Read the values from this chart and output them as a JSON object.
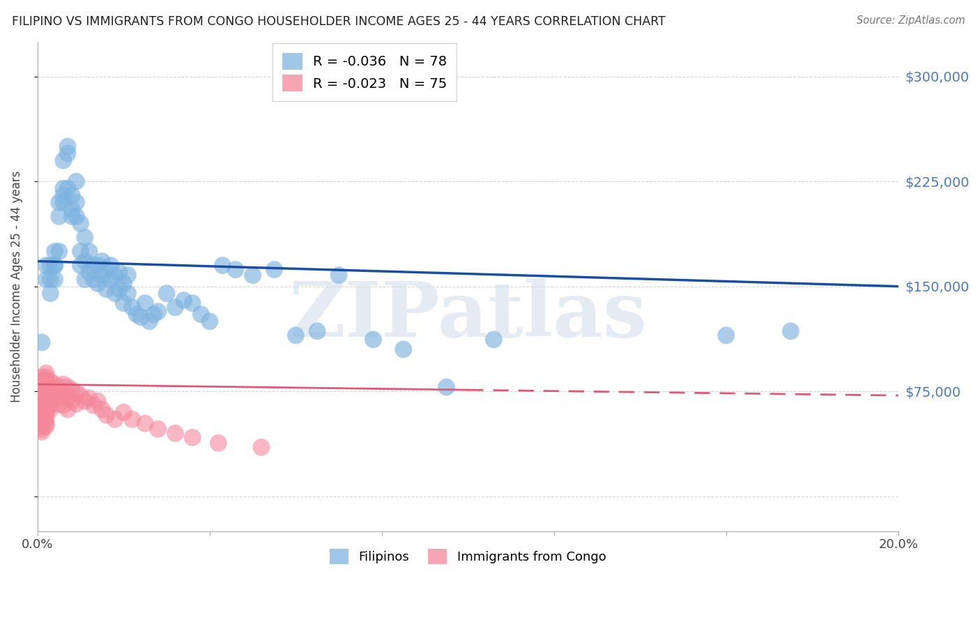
{
  "title": "FILIPINO VS IMMIGRANTS FROM CONGO HOUSEHOLDER INCOME AGES 25 - 44 YEARS CORRELATION CHART",
  "source": "Source: ZipAtlas.com",
  "ylabel": "Householder Income Ages 25 - 44 years",
  "xmin": 0.0,
  "xmax": 0.2,
  "ymin": -25000,
  "ymax": 325000,
  "yticks": [
    0,
    75000,
    150000,
    225000,
    300000
  ],
  "xticks": [
    0.0,
    0.04,
    0.08,
    0.12,
    0.16,
    0.2
  ],
  "filipino_color": "#7eb3e0",
  "congo_color": "#f4879a",
  "filipino_line_color": "#1a4fa0",
  "congo_line_color": "#e05878",
  "watermark": "ZIPatlas",
  "watermark_color": "#d0dce8",
  "background_color": "#ffffff",
  "grid_color": "#cccccc",
  "right_label_color": "#4a7abf",
  "legend_label_1": "R = -0.036   N = 78",
  "legend_label_2": "R = -0.023   N = 75",
  "bottom_label_filipinos": "Filipinos",
  "bottom_label_congo": "Immigrants from Congo",
  "filipinos_x": [
    0.001,
    0.002,
    0.002,
    0.003,
    0.003,
    0.003,
    0.004,
    0.004,
    0.004,
    0.004,
    0.005,
    0.005,
    0.005,
    0.006,
    0.006,
    0.006,
    0.006,
    0.007,
    0.007,
    0.007,
    0.008,
    0.008,
    0.008,
    0.009,
    0.009,
    0.009,
    0.01,
    0.01,
    0.01,
    0.011,
    0.011,
    0.011,
    0.012,
    0.012,
    0.013,
    0.013,
    0.014,
    0.014,
    0.015,
    0.015,
    0.016,
    0.016,
    0.017,
    0.017,
    0.018,
    0.018,
    0.019,
    0.019,
    0.02,
    0.02,
    0.021,
    0.021,
    0.022,
    0.023,
    0.024,
    0.025,
    0.026,
    0.027,
    0.028,
    0.03,
    0.032,
    0.034,
    0.036,
    0.038,
    0.04,
    0.043,
    0.046,
    0.05,
    0.055,
    0.06,
    0.065,
    0.07,
    0.078,
    0.085,
    0.095,
    0.106,
    0.16,
    0.175
  ],
  "filipinos_y": [
    110000,
    155000,
    165000,
    145000,
    165000,
    155000,
    165000,
    155000,
    175000,
    165000,
    175000,
    200000,
    210000,
    210000,
    215000,
    220000,
    240000,
    245000,
    220000,
    250000,
    200000,
    215000,
    205000,
    210000,
    225000,
    200000,
    165000,
    175000,
    195000,
    185000,
    155000,
    168000,
    160000,
    175000,
    155000,
    165000,
    152000,
    165000,
    158000,
    168000,
    148000,
    162000,
    155000,
    165000,
    145000,
    158000,
    148000,
    160000,
    138000,
    152000,
    145000,
    158000,
    135000,
    130000,
    128000,
    138000,
    125000,
    130000,
    132000,
    145000,
    135000,
    140000,
    138000,
    130000,
    125000,
    165000,
    162000,
    158000,
    162000,
    115000,
    118000,
    158000,
    112000,
    105000,
    78000,
    112000,
    115000,
    118000
  ],
  "congo_x": [
    0.001,
    0.001,
    0.001,
    0.001,
    0.001,
    0.001,
    0.001,
    0.001,
    0.001,
    0.001,
    0.001,
    0.001,
    0.001,
    0.001,
    0.001,
    0.001,
    0.001,
    0.001,
    0.001,
    0.001,
    0.002,
    0.002,
    0.002,
    0.002,
    0.002,
    0.002,
    0.002,
    0.002,
    0.002,
    0.002,
    0.002,
    0.002,
    0.002,
    0.002,
    0.002,
    0.002,
    0.003,
    0.003,
    0.003,
    0.003,
    0.003,
    0.003,
    0.003,
    0.004,
    0.004,
    0.004,
    0.005,
    0.005,
    0.005,
    0.006,
    0.006,
    0.006,
    0.007,
    0.007,
    0.007,
    0.008,
    0.008,
    0.009,
    0.009,
    0.01,
    0.011,
    0.012,
    0.013,
    0.014,
    0.015,
    0.016,
    0.018,
    0.02,
    0.022,
    0.025,
    0.028,
    0.032,
    0.036,
    0.042,
    0.052
  ],
  "congo_y": [
    85000,
    82000,
    80000,
    78000,
    76000,
    74000,
    72000,
    70000,
    68000,
    66000,
    64000,
    62000,
    60000,
    58000,
    56000,
    54000,
    52000,
    50000,
    48000,
    46000,
    88000,
    85000,
    83000,
    80000,
    78000,
    75000,
    72000,
    70000,
    68000,
    65000,
    62000,
    60000,
    58000,
    55000,
    52000,
    50000,
    82000,
    78000,
    75000,
    72000,
    68000,
    65000,
    62000,
    80000,
    75000,
    70000,
    78000,
    72000,
    66000,
    80000,
    72000,
    65000,
    78000,
    70000,
    62000,
    76000,
    68000,
    74000,
    66000,
    72000,
    68000,
    70000,
    65000,
    68000,
    62000,
    58000,
    55000,
    60000,
    55000,
    52000,
    48000,
    45000,
    42000,
    38000,
    35000
  ],
  "filipino_line_x0": 0.0,
  "filipino_line_x1": 0.2,
  "filipino_line_y0": 168000,
  "filipino_line_y1": 150000,
  "congo_line_x0": 0.0,
  "congo_line_x1": 0.1,
  "congo_line_y0": 80000,
  "congo_line_y1": 76000,
  "congo_line_dash_x0": 0.1,
  "congo_line_dash_x1": 0.2,
  "congo_line_dash_y0": 76000,
  "congo_line_dash_y1": 72000
}
